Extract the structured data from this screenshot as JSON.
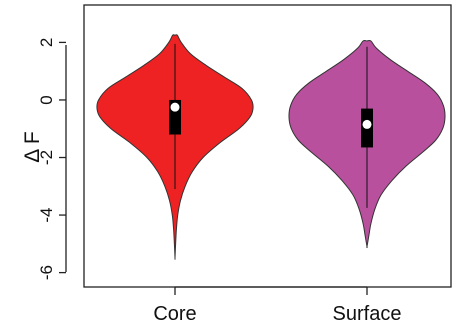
{
  "chart_data": {
    "type": "violin",
    "title": "",
    "xlabel": "",
    "ylabel": "Δ F",
    "ylim": [
      -6.5,
      3.3
    ],
    "yticks": [
      -6,
      -4,
      -2,
      0,
      2
    ],
    "ytick_labels": [
      "-6",
      "-4",
      "-2",
      "0",
      "2"
    ],
    "categories": [
      "Core",
      "Surface"
    ],
    "grid": false,
    "legend": "none",
    "series": [
      {
        "category": "Core",
        "color": "#ee2222",
        "min": -5.5,
        "max": 2.25,
        "whisker_low": -3.1,
        "whisker_high": 1.95,
        "q1": -1.2,
        "q3": 0.0,
        "median": -0.25,
        "density_profile": [
          [
            2.25,
            0.03
          ],
          [
            2.0,
            0.08
          ],
          [
            1.6,
            0.2
          ],
          [
            1.2,
            0.4
          ],
          [
            0.8,
            0.63
          ],
          [
            0.4,
            0.86
          ],
          [
            0.0,
            0.98
          ],
          [
            -0.3,
            1.0
          ],
          [
            -0.6,
            0.96
          ],
          [
            -1.0,
            0.82
          ],
          [
            -1.5,
            0.57
          ],
          [
            -2.0,
            0.36
          ],
          [
            -2.5,
            0.22
          ],
          [
            -3.0,
            0.13
          ],
          [
            -3.5,
            0.07
          ],
          [
            -4.0,
            0.035
          ],
          [
            -4.5,
            0.018
          ],
          [
            -5.0,
            0.008
          ],
          [
            -5.5,
            0.0
          ]
        ]
      },
      {
        "category": "Surface",
        "color": "#b8509e",
        "min": -5.1,
        "max": 2.05,
        "whisker_low": -3.75,
        "whisker_high": 1.85,
        "q1": -1.65,
        "q3": -0.3,
        "median": -0.85,
        "density_profile": [
          [
            2.05,
            0.05
          ],
          [
            1.8,
            0.12
          ],
          [
            1.4,
            0.3
          ],
          [
            1.0,
            0.52
          ],
          [
            0.6,
            0.74
          ],
          [
            0.2,
            0.9
          ],
          [
            -0.2,
            0.98
          ],
          [
            -0.6,
            1.0
          ],
          [
            -1.0,
            0.97
          ],
          [
            -1.4,
            0.88
          ],
          [
            -1.8,
            0.72
          ],
          [
            -2.3,
            0.5
          ],
          [
            -2.8,
            0.32
          ],
          [
            -3.3,
            0.18
          ],
          [
            -3.8,
            0.1
          ],
          [
            -4.3,
            0.05
          ],
          [
            -4.7,
            0.025
          ],
          [
            -5.1,
            0.0
          ]
        ]
      }
    ]
  }
}
